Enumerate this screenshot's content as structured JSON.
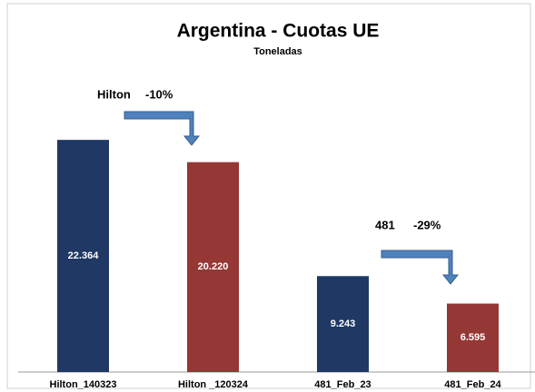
{
  "chart_data": {
    "type": "bar",
    "title": "Argentina - Cuotas UE",
    "subtitle": "Toneladas",
    "categories": [
      "Hilton_140323",
      "Hilton _120324",
      "481_Feb_23",
      "481_Feb_24"
    ],
    "values": [
      22364,
      20220,
      9243,
      6595
    ],
    "value_labels": [
      "22.364",
      "20.220",
      "9.243",
      "6.595"
    ],
    "colors": [
      "#1f3864",
      "#953735",
      "#1f3864",
      "#953735"
    ],
    "ylim": [
      0,
      25000
    ],
    "annotations": [
      "Hilton",
      "-10%",
      "481",
      "-29%"
    ]
  }
}
